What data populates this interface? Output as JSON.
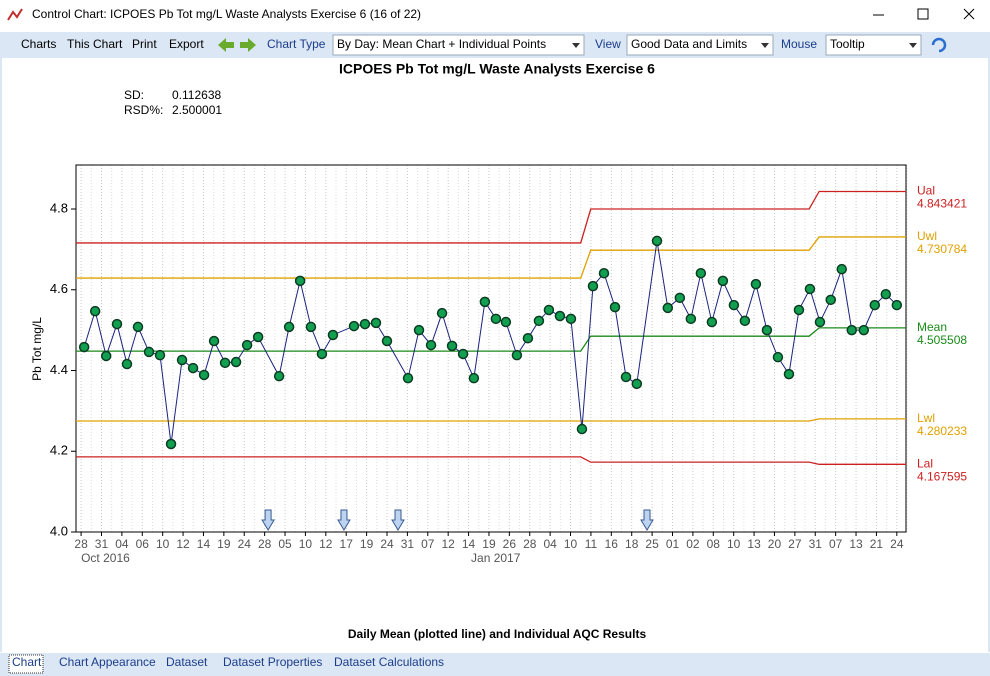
{
  "window": {
    "title": "Control Chart: ICPOES Pb Tot mg/L Waste Analysts Exercise 6 (16 of 22)"
  },
  "toolbar": {
    "menus": [
      "Charts",
      "This Chart",
      "Print",
      "Export"
    ],
    "chart_type_label": "Chart Type",
    "chart_type_value": "By Day: Mean Chart + Individual Points",
    "view_label": "View",
    "view_value": "Good Data and Limits",
    "mouse_label": "Mouse",
    "mouse_value": "Tooltip"
  },
  "chart_data": {
    "type": "line",
    "title": "ICPOES Pb Tot mg/L Waste Analysts Exercise 6",
    "stats": [
      {
        "label": "SD:",
        "value": "0.112638"
      },
      {
        "label": "RSD%:",
        "value": "2.500001"
      }
    ],
    "ylabel": "Pb Tot mg/L",
    "xlabel": "Daily Mean (plotted line) and Individual AQC Results",
    "categories": [
      "28",
      "31",
      "04",
      "06",
      "10",
      "12",
      "14",
      "19",
      "24",
      "28",
      "05",
      "10",
      "12",
      "17",
      "19",
      "24",
      "31",
      "07",
      "12",
      "14",
      "19",
      "26",
      "28",
      "04",
      "10",
      "11",
      "16",
      "18",
      "25",
      "01",
      "02",
      "08",
      "10",
      "13",
      "20",
      "27",
      "31",
      "07",
      "13",
      "21",
      "24"
    ],
    "sublabels": [
      {
        "text": "Oct 2016",
        "x": 0
      },
      {
        "text": "Jan 2017",
        "x": 20.2
      }
    ],
    "xlim": [
      -0.25,
      40.45
    ],
    "ylim": [
      4.0,
      4.909
    ],
    "yticks": [
      {
        "value": 4,
        "label": "4.0"
      },
      4.2,
      4.4,
      4.6,
      4.8
    ],
    "line_color": "#1a237e",
    "marker_color": "#12a050",
    "x": [
      0.15,
      0.69,
      1.23,
      1.76,
      2.25,
      2.79,
      3.33,
      3.87,
      4.41,
      4.95,
      5.49,
      6.03,
      6.52,
      7.06,
      7.6,
      8.14,
      8.68,
      9.71,
      10.2,
      10.74,
      11.27,
      11.81,
      12.35,
      13.38,
      13.92,
      14.46,
      15,
      16.03,
      16.57,
      17.16,
      17.7,
      18.19,
      18.73,
      19.26,
      19.8,
      20.34,
      20.83,
      21.37,
      21.91,
      22.45,
      22.94,
      23.48,
      24.02,
      24.56,
      25.1,
      25.64,
      26.18,
      26.72,
      27.25,
      28.24,
      28.77,
      29.36,
      29.9,
      30.39,
      30.93,
      31.47,
      32.01,
      32.55,
      33.09,
      33.63,
      34.17,
      34.71,
      35.2,
      35.74,
      36.23,
      36.76,
      37.3,
      37.79,
      38.38,
      38.92,
      39.46,
      40
    ],
    "values": [
      4.458,
      4.547,
      4.436,
      4.515,
      4.416,
      4.508,
      4.446,
      4.438,
      4.218,
      4.426,
      4.406,
      4.389,
      4.473,
      4.419,
      4.421,
      4.463,
      4.483,
      4.386,
      4.508,
      4.622,
      4.508,
      4.441,
      4.488,
      4.51,
      4.515,
      4.518,
      4.473,
      4.381,
      4.5,
      4.463,
      4.542,
      4.461,
      4.441,
      4.381,
      4.57,
      4.528,
      4.52,
      4.438,
      4.48,
      4.523,
      4.55,
      4.535,
      4.528,
      4.255,
      4.609,
      4.641,
      4.557,
      4.384,
      4.367,
      4.721,
      4.555,
      4.58,
      4.528,
      4.641,
      4.52,
      4.622,
      4.562,
      4.523,
      4.614,
      4.5,
      4.433,
      4.391,
      4.55,
      4.602,
      4.52,
      4.575,
      4.651,
      4.5,
      4.5,
      4.562,
      4.589,
      4.562
    ],
    "limit_breaks": [
      24.5,
      35.7
    ],
    "limits": [
      {
        "name": "Ual",
        "color": "#cc2020",
        "values": [
          4.716,
          4.8,
          4.843421
        ]
      },
      {
        "name": "Uwl",
        "color": "#e0a000",
        "values": [
          4.629,
          4.698,
          4.730784
        ]
      },
      {
        "name": "Mean",
        "color": "#1a8a1a",
        "values": [
          4.448,
          4.485,
          4.505508
        ]
      },
      {
        "name": "Lwl",
        "color": "#e0a000",
        "values": [
          4.275,
          4.275,
          4.280233
        ]
      },
      {
        "name": "Lal",
        "color": "#cc2020",
        "values": [
          4.186,
          4.173,
          4.167595
        ]
      }
    ],
    "event_arrows_x": [
      9.17,
      12.89,
      15.54,
      27.75
    ]
  },
  "tabs": [
    "Chart",
    "Chart Appearance",
    "Dataset",
    "Dataset Properties",
    "Dataset Calculations"
  ]
}
